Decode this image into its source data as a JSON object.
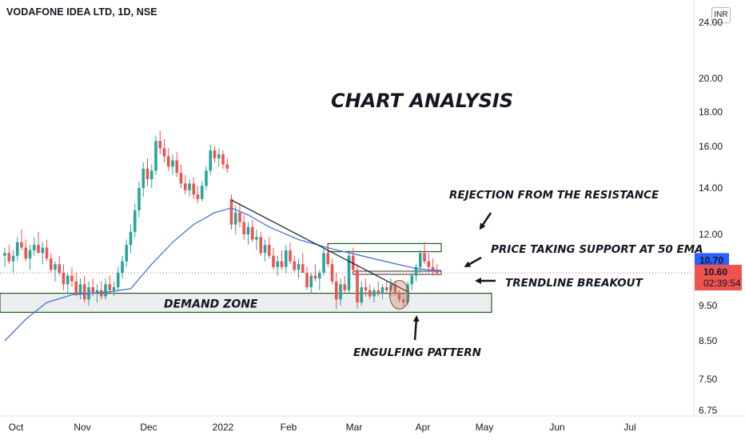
{
  "header": {
    "symbol": "VODAFONE IDEA LTD, 1D, NSE",
    "currency": "INR"
  },
  "chart_data": {
    "type": "candlestick",
    "title": "CHART ANALYSIS",
    "ylim": [
      6.75,
      24.5
    ],
    "y_ticks": [
      "24.00",
      "20.00",
      "18.00",
      "16.00",
      "14.00",
      "12.00",
      "10.60",
      "9.50",
      "8.50",
      "7.50",
      "6.75"
    ],
    "x_ticks": [
      "Oct",
      "Nov",
      "Dec",
      "2022",
      "Feb",
      "Mar",
      "Apr",
      "May",
      "Jun",
      "Jul"
    ],
    "price_labels": {
      "ema": "10.70",
      "last": "10.60",
      "timer": "02:39:54"
    },
    "series_ohlc": [
      [
        11.2,
        11.5,
        10.8,
        11.3
      ],
      [
        11.3,
        11.6,
        10.9,
        11.0
      ],
      [
        11.0,
        11.4,
        10.6,
        11.2
      ],
      [
        11.2,
        11.9,
        11.0,
        11.7
      ],
      [
        11.7,
        12.2,
        11.4,
        11.5
      ],
      [
        11.5,
        11.8,
        11.0,
        11.1
      ],
      [
        11.1,
        11.6,
        10.7,
        11.4
      ],
      [
        11.4,
        11.9,
        11.2,
        11.6
      ],
      [
        11.6,
        12.1,
        11.3,
        11.3
      ],
      [
        11.3,
        11.7,
        10.9,
        11.5
      ],
      [
        11.5,
        11.8,
        11.0,
        11.1
      ],
      [
        11.1,
        11.3,
        10.6,
        10.7
      ],
      [
        10.7,
        11.0,
        10.3,
        10.9
      ],
      [
        10.9,
        11.2,
        10.5,
        10.6
      ],
      [
        10.6,
        10.9,
        10.0,
        10.2
      ],
      [
        10.2,
        10.6,
        9.9,
        10.5
      ],
      [
        10.5,
        10.8,
        10.1,
        10.3
      ],
      [
        10.3,
        10.6,
        9.8,
        9.9
      ],
      [
        9.9,
        10.4,
        9.7,
        10.2
      ],
      [
        10.2,
        10.5,
        9.6,
        9.7
      ],
      [
        9.7,
        10.3,
        9.5,
        10.1
      ],
      [
        10.1,
        10.4,
        9.8,
        9.9
      ],
      [
        9.9,
        10.2,
        9.6,
        10.0
      ],
      [
        10.0,
        10.3,
        9.7,
        9.8
      ],
      [
        9.8,
        10.4,
        9.7,
        10.2
      ],
      [
        10.2,
        10.5,
        9.9,
        10.0
      ],
      [
        10.0,
        10.3,
        9.8,
        10.1
      ],
      [
        10.1,
        10.8,
        10.0,
        10.6
      ],
      [
        10.6,
        11.2,
        10.4,
        11.0
      ],
      [
        11.0,
        11.8,
        10.8,
        11.6
      ],
      [
        11.6,
        12.4,
        11.3,
        12.1
      ],
      [
        12.1,
        13.3,
        11.9,
        13.0
      ],
      [
        13.0,
        14.3,
        12.7,
        14.0
      ],
      [
        14.0,
        15.2,
        13.6,
        14.9
      ],
      [
        14.9,
        15.4,
        14.1,
        14.4
      ],
      [
        14.4,
        15.1,
        14.0,
        14.8
      ],
      [
        14.8,
        16.6,
        14.6,
        16.3
      ],
      [
        16.3,
        16.9,
        15.6,
        15.9
      ],
      [
        15.9,
        16.4,
        15.2,
        15.5
      ],
      [
        15.5,
        15.9,
        14.8,
        15.0
      ],
      [
        15.0,
        15.6,
        14.6,
        15.3
      ],
      [
        15.3,
        15.7,
        14.5,
        14.7
      ],
      [
        14.7,
        15.1,
        14.0,
        14.2
      ],
      [
        14.2,
        14.6,
        13.7,
        13.9
      ],
      [
        13.9,
        14.4,
        13.6,
        14.2
      ],
      [
        14.2,
        14.5,
        13.5,
        13.7
      ],
      [
        13.7,
        14.1,
        13.3,
        13.5
      ],
      [
        13.5,
        14.3,
        13.4,
        14.1
      ],
      [
        14.1,
        15.0,
        13.9,
        14.8
      ],
      [
        14.8,
        16.1,
        14.6,
        15.8
      ],
      [
        15.8,
        16.0,
        15.2,
        15.4
      ],
      [
        15.4,
        15.9,
        15.0,
        15.6
      ],
      [
        15.6,
        15.8,
        14.9,
        15.1
      ],
      [
        15.1,
        15.4,
        14.7,
        14.9
      ],
      [
        13.5,
        13.7,
        12.2,
        12.4
      ],
      [
        12.4,
        13.2,
        12.0,
        12.9
      ],
      [
        12.9,
        13.3,
        12.3,
        12.5
      ],
      [
        12.5,
        12.8,
        11.8,
        12.0
      ],
      [
        12.0,
        12.5,
        11.6,
        12.3
      ],
      [
        12.3,
        12.6,
        11.7,
        11.8
      ],
      [
        11.8,
        12.2,
        11.4,
        11.9
      ],
      [
        11.9,
        12.1,
        11.2,
        11.3
      ],
      [
        11.3,
        11.8,
        11.0,
        11.6
      ],
      [
        11.6,
        11.9,
        11.1,
        11.2
      ],
      [
        11.2,
        11.5,
        10.7,
        10.8
      ],
      [
        10.8,
        11.2,
        10.5,
        11.0
      ],
      [
        11.0,
        11.4,
        10.7,
        10.8
      ],
      [
        10.8,
        11.6,
        10.6,
        11.4
      ],
      [
        11.4,
        11.7,
        10.9,
        11.0
      ],
      [
        11.0,
        11.2,
        10.6,
        10.7
      ],
      [
        10.7,
        11.1,
        10.4,
        10.9
      ],
      [
        10.9,
        11.3,
        10.6,
        10.6
      ],
      [
        10.6,
        10.8,
        10.0,
        10.1
      ],
      [
        10.1,
        10.6,
        9.9,
        10.5
      ],
      [
        10.5,
        10.9,
        10.3,
        10.4
      ],
      [
        10.4,
        10.7,
        10.0,
        10.6
      ],
      [
        10.6,
        11.5,
        10.5,
        11.3
      ],
      [
        11.3,
        11.6,
        10.8,
        10.9
      ],
      [
        10.9,
        11.1,
        10.2,
        10.3
      ],
      [
        10.3,
        10.6,
        9.4,
        9.7
      ],
      [
        9.7,
        10.4,
        9.5,
        10.2
      ],
      [
        10.2,
        10.5,
        9.9,
        10.0
      ],
      [
        10.0,
        11.4,
        9.9,
        11.2
      ],
      [
        11.2,
        11.5,
        10.6,
        10.7
      ],
      [
        10.7,
        10.9,
        9.4,
        9.6
      ],
      [
        9.6,
        10.3,
        9.5,
        10.1
      ],
      [
        10.1,
        10.4,
        9.8,
        10.0
      ],
      [
        10.0,
        10.2,
        9.7,
        9.8
      ],
      [
        9.8,
        10.1,
        9.6,
        10.0
      ],
      [
        10.0,
        10.3,
        9.8,
        9.9
      ],
      [
        9.9,
        10.2,
        9.7,
        10.1
      ],
      [
        10.1,
        10.3,
        9.9,
        10.0
      ],
      [
        10.0,
        10.4,
        9.8,
        10.2
      ],
      [
        10.2,
        10.3,
        9.8,
        9.9
      ],
      [
        9.9,
        10.0,
        9.6,
        9.7
      ],
      [
        9.7,
        9.9,
        9.5,
        9.6
      ],
      [
        9.6,
        10.3,
        9.5,
        10.2
      ],
      [
        10.2,
        10.6,
        10.0,
        10.5
      ],
      [
        10.5,
        10.9,
        10.3,
        10.8
      ],
      [
        10.8,
        11.4,
        10.6,
        11.3
      ],
      [
        11.3,
        11.7,
        10.9,
        11.0
      ],
      [
        11.0,
        11.3,
        10.6,
        10.8
      ],
      [
        10.8,
        11.1,
        10.5,
        10.7
      ],
      [
        10.7,
        10.9,
        10.5,
        10.6
      ]
    ],
    "ema_50": [
      [
        0,
        8.5
      ],
      [
        5,
        9.1
      ],
      [
        10,
        9.6
      ],
      [
        16,
        9.85
      ],
      [
        25,
        9.95
      ],
      [
        30,
        10.05
      ],
      [
        35,
        10.9
      ],
      [
        40,
        11.7
      ],
      [
        45,
        12.4
      ],
      [
        50,
        12.9
      ],
      [
        54,
        13.1
      ],
      [
        58,
        12.8
      ],
      [
        63,
        12.3
      ],
      [
        70,
        11.8
      ],
      [
        78,
        11.45
      ],
      [
        85,
        11.2
      ],
      [
        92,
        10.95
      ],
      [
        98,
        10.75
      ],
      [
        101,
        10.7
      ],
      [
        104,
        10.68
      ]
    ],
    "ema_x_start": 0,
    "trendline": [
      [
        54,
        13.45
      ],
      [
        96,
        9.95
      ]
    ],
    "resistance_zone": {
      "x_start": 77,
      "x_end": 104,
      "price_low": 11.35,
      "price_high": 11.65
    },
    "support_line": {
      "x_start": 83,
      "x_end": 104,
      "price": 10.6
    },
    "demand_zone": {
      "x_end": 116,
      "price_low": 9.3,
      "price_high": 9.9,
      "label": "DEMAND ZONE"
    },
    "engulfing_x": 94,
    "engulfing_price": 9.85,
    "annotations": {
      "rejection": "REJECTION FROM THE RESISTANCE",
      "ema_support": "PRICE TAKING SUPPORT AT 50 EMA",
      "trendline_breakout": "TRENDLINE BREAKOUT",
      "engulfing": "ENGULFING PATTERN"
    },
    "colors": {
      "up": "#26a69a",
      "down": "#ef5350",
      "ema": "#4a74d8",
      "zone_fill": "#edeef0",
      "zone_border": "#1b5e20",
      "title": "#8a1e58",
      "ema_label": "#2962ff",
      "last_label": "#ef5350"
    }
  }
}
